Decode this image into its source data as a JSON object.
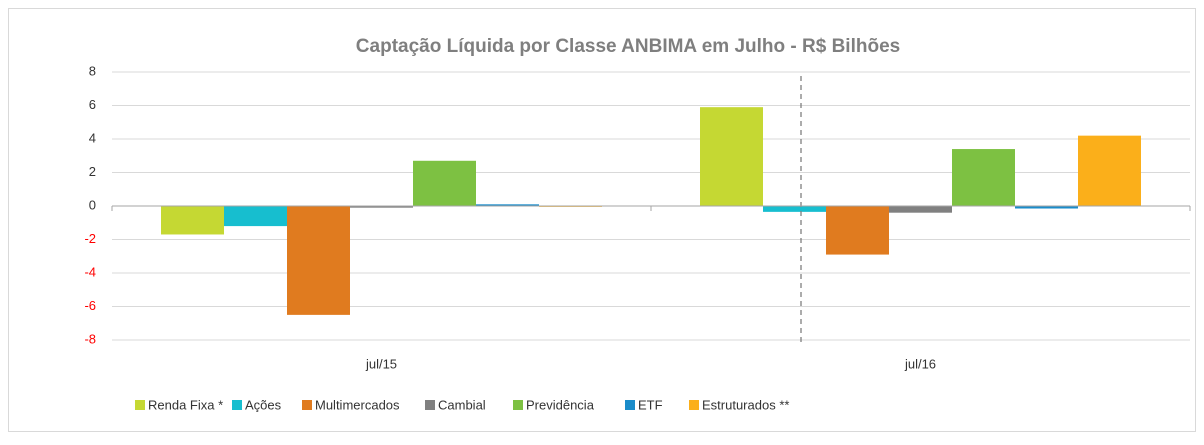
{
  "chart_data": {
    "type": "bar",
    "title": "Captação Líquida por Classe ANBIMA em Julho - R$ Bilhões",
    "categories": [
      "jul/15",
      "jul/16"
    ],
    "series": [
      {
        "name": "Renda Fixa *",
        "color": "#c5d833",
        "values": [
          -1.7,
          5.9
        ]
      },
      {
        "name": "Ações",
        "color": "#17becf",
        "values": [
          -1.2,
          -0.35
        ]
      },
      {
        "name": "Multimercados",
        "color": "#e07b1f",
        "values": [
          -6.5,
          -2.9
        ]
      },
      {
        "name": "Cambial",
        "color": "#808080",
        "values": [
          -0.1,
          -0.4
        ]
      },
      {
        "name": "Previdência",
        "color": "#7dc142",
        "values": [
          2.7,
          3.4
        ]
      },
      {
        "name": "ETF",
        "color": "#1a8cca",
        "values": [
          0.1,
          -0.15
        ]
      },
      {
        "name": "Estruturados **",
        "color": "#fbaf1a",
        "values": [
          -0.05,
          4.2
        ]
      }
    ],
    "ylim": [
      -8,
      8
    ],
    "yticks": [
      -8,
      -6,
      -4,
      -2,
      0,
      2,
      4,
      6,
      8
    ],
    "grid": true,
    "negative_tick_color": "#ff0000",
    "legend": "bottom"
  }
}
